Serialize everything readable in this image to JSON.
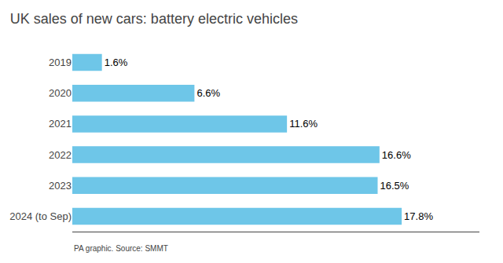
{
  "chart_data": {
    "type": "bar",
    "orientation": "horizontal",
    "title": "UK sales of new cars: battery electric vehicles",
    "categories": [
      "2019",
      "2020",
      "2021",
      "2022",
      "2023",
      "2024 (to Sep)"
    ],
    "values": [
      1.6,
      6.6,
      11.6,
      16.6,
      16.5,
      17.8
    ],
    "value_labels": [
      "1.6%",
      "6.6%",
      "11.6%",
      "16.6%",
      "16.5%",
      "17.8%"
    ],
    "data_labels": true,
    "color": "#6EC6E8",
    "xlim": [
      0,
      22
    ],
    "grid": false,
    "tick_labels": "y",
    "annotations": [
      "PA graphic. Source: SMMT"
    ]
  }
}
